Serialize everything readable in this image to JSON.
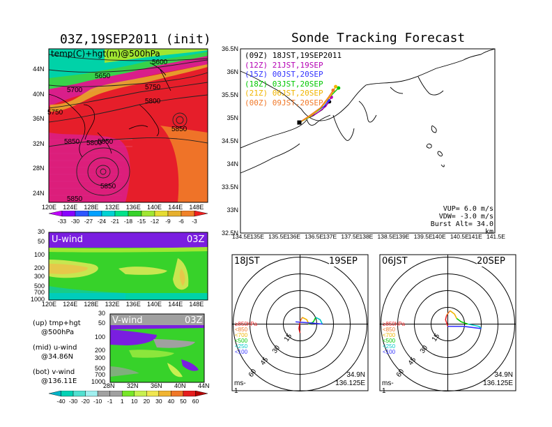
{
  "top_left_title": "03Z,19SEP2011 (init)",
  "right_title": "Sonde Tracking Forecast",
  "map500": {
    "label": "temp(C)+hgt(m)@500hPa",
    "lon_ticks": [
      "120E",
      "124E",
      "128E",
      "132E",
      "136E",
      "140E",
      "144E",
      "148E"
    ],
    "lat_ticks": [
      "44N",
      "40N",
      "36N",
      "32N",
      "28N",
      "24N"
    ],
    "contour_labels": [
      "5600",
      "5650",
      "5700",
      "5750",
      "5800",
      "5850",
      "5850",
      "5800",
      "5850",
      "5750",
      "5850",
      "5850"
    ],
    "colorbar": {
      "labels": [
        "-33",
        "-30",
        "-27",
        "-24",
        "-21",
        "-18",
        "-15",
        "-12",
        "-9",
        "-6",
        "-3"
      ],
      "colors": [
        "#c000ff",
        "#8800ff",
        "#2e55ff",
        "#00a0ff",
        "#00d2d2",
        "#00e28a",
        "#35d22a",
        "#a0e632",
        "#e6dc32",
        "#e6af2d",
        "#f08228",
        "#f01e1e"
      ]
    }
  },
  "uwind": {
    "label": "U-wind",
    "time": "03Z",
    "y_ticks": [
      "30",
      "50",
      "100",
      "200",
      "300",
      "500",
      "700",
      "1000"
    ],
    "x_ticks": [
      "120E",
      "124E",
      "128E",
      "132E",
      "136E",
      "140E",
      "144E",
      "148E"
    ]
  },
  "vwind": {
    "label": "V-wind",
    "time": "03Z",
    "y_ticks": [
      "30",
      "50",
      "100",
      "200",
      "300",
      "500",
      "700",
      "1000"
    ],
    "x_ticks": [
      "28N",
      "32N",
      "36N",
      "40N",
      "44N"
    ],
    "colorbar": {
      "labels": [
        "-40",
        "-30",
        "-20",
        "-10",
        "-1",
        "1",
        "10",
        "20",
        "30",
        "40",
        "50",
        "60"
      ],
      "colors": [
        "#00b4c8",
        "#00d2b4",
        "#50e0d0",
        "#a0f0f0",
        "#a0a0a0",
        "#a0a0a0",
        "#78e628",
        "#c8f050",
        "#f0e650",
        "#f0b432",
        "#f07828",
        "#e61e1e",
        "#b40000"
      ]
    }
  },
  "legend_text": [
    [
      "(up) tmp+hgt",
      "@500hPa"
    ],
    [
      "(mid) u-wind",
      "@34.86N"
    ],
    [
      "(bot) v-wind",
      "@136.11E"
    ]
  ],
  "track": {
    "legend": [
      {
        "label": "(09Z)  18JST,19SEP2011",
        "color": "#000000"
      },
      {
        "label": "(12Z)  21JST,19SEP",
        "color": "#b400b4"
      },
      {
        "label": "(15Z)  00JST,20SEP",
        "color": "#3232ff"
      },
      {
        "label": "(18Z)  03JST,20SEP",
        "color": "#00c800"
      },
      {
        "label": "(21Z)  06JST,20SEP",
        "color": "#f0b400"
      },
      {
        "label": "(00Z)  09JST,20SEP",
        "color": "#f07828"
      }
    ],
    "lon_ticks": [
      "134.5E",
      "135E",
      "135.5E",
      "136E",
      "136.5E",
      "137E",
      "137.5E",
      "138E",
      "138.5E",
      "139E",
      "139.5E",
      "140E",
      "140.5E",
      "141E",
      "141.5E"
    ],
    "lat_ticks": [
      "36.5N",
      "36N",
      "35.5N",
      "35N",
      "34.5N",
      "34N",
      "33.5N",
      "33N",
      "32.5N"
    ],
    "params": [
      "VUP=  6.0  m/s",
      "VDW= -3.0  m/s",
      "Burst Alt=  34.0  km"
    ]
  },
  "hodographs": [
    {
      "time": "18JST",
      "date": "19SEP",
      "lat": "34.9N",
      "lon": "136.125E",
      "unit": "ms-1",
      "ring_labels": [
        "15",
        "30",
        "45",
        "60"
      ],
      "pressure_legend": [
        {
          "label": "≥850hPa",
          "color": "#e61e1e"
        },
        {
          "label": "<850",
          "color": "#f07828"
        },
        {
          "label": "<700",
          "color": "#f0b400"
        },
        {
          "label": "<500",
          "color": "#00c800"
        },
        {
          "label": "<250",
          "color": "#00c8c8"
        },
        {
          "label": "<100",
          "color": "#3232ff"
        }
      ]
    },
    {
      "time": "06JST",
      "date": "20SEP",
      "lat": "34.9N",
      "lon": "136.125E",
      "unit": "ms-1",
      "ring_labels": [
        "15",
        "30",
        "45",
        "60"
      ],
      "pressure_legend": [
        {
          "label": "≥850hPa",
          "color": "#e61e1e"
        },
        {
          "label": "<850",
          "color": "#f07828"
        },
        {
          "label": "<700",
          "color": "#f0b400"
        },
        {
          "label": "<500",
          "color": "#00c800"
        },
        {
          "label": "<250",
          "color": "#00c8c8"
        },
        {
          "label": "<100",
          "color": "#3232ff"
        }
      ]
    }
  ],
  "chart_data": [
    {
      "type": "heatmap",
      "title": "03Z,19SEP2011 (init)",
      "subtitle": "temp(C)+hgt(m)@500hPa",
      "xlim": [
        120,
        150
      ],
      "ylim": [
        22,
        47
      ],
      "x_ticks": [
        120,
        124,
        128,
        132,
        136,
        140,
        144,
        148
      ],
      "y_ticks": [
        24,
        28,
        32,
        36,
        40,
        44
      ],
      "contours_m": [
        5600,
        5650,
        5700,
        5750,
        5800,
        5850
      ],
      "colorbar_c": [
        -33,
        -30,
        -27,
        -24,
        -21,
        -18,
        -15,
        -12,
        -9,
        -6,
        -3
      ]
    },
    {
      "type": "heatmap",
      "title": "U-wind",
      "subtitle": "03Z",
      "xlim": [
        120,
        150
      ],
      "y_levels_hpa": [
        30,
        50,
        100,
        200,
        300,
        500,
        700,
        1000
      ],
      "log_scale_y": true
    },
    {
      "type": "heatmap",
      "title": "V-wind",
      "subtitle": "03Z",
      "xlim": [
        28,
        44
      ],
      "y_levels_hpa": [
        30,
        50,
        100,
        200,
        300,
        500,
        700,
        1000
      ],
      "log_scale_y": true,
      "colorbar_ms": [
        -40,
        -30,
        -20,
        -10,
        -1,
        1,
        10,
        20,
        30,
        40,
        50,
        60
      ]
    },
    {
      "type": "line",
      "title": "Sonde Tracking Forecast",
      "xlim": [
        134.5,
        141.5
      ],
      "ylim": [
        32.5,
        36.5
      ],
      "series": [
        {
          "name": "(09Z)  18JST,19SEP2011",
          "x": [
            136.12,
            136.3,
            136.5,
            136.75,
            136.95
          ],
          "y": [
            34.9,
            34.98,
            35.05,
            35.18,
            35.35
          ]
        },
        {
          "name": "(12Z)  21JST,19SEP",
          "x": [
            136.12,
            136.35,
            136.6,
            136.85,
            137.0
          ],
          "y": [
            34.9,
            35.0,
            35.1,
            35.25,
            35.45
          ]
        },
        {
          "name": "(15Z)  00JST,20SEP",
          "x": [
            136.12,
            136.32,
            136.55,
            136.8,
            136.92
          ],
          "y": [
            34.9,
            35.0,
            35.12,
            35.25,
            35.38
          ]
        },
        {
          "name": "(18Z)  03JST,20SEP",
          "x": [
            136.12,
            136.4,
            136.7,
            136.95,
            137.2
          ],
          "y": [
            34.9,
            35.02,
            35.2,
            35.45,
            35.65
          ]
        },
        {
          "name": "(21Z)  06JST,20SEP",
          "x": [
            136.12,
            136.45,
            136.75,
            137.0,
            137.12
          ],
          "y": [
            34.9,
            35.05,
            35.25,
            35.5,
            35.68
          ]
        },
        {
          "name": "(00Z)  09JST,20SEP",
          "x": [
            136.12,
            136.4,
            136.7,
            136.92,
            137.05
          ],
          "y": [
            34.9,
            35.05,
            35.22,
            35.45,
            35.6
          ]
        }
      ]
    }
  ]
}
